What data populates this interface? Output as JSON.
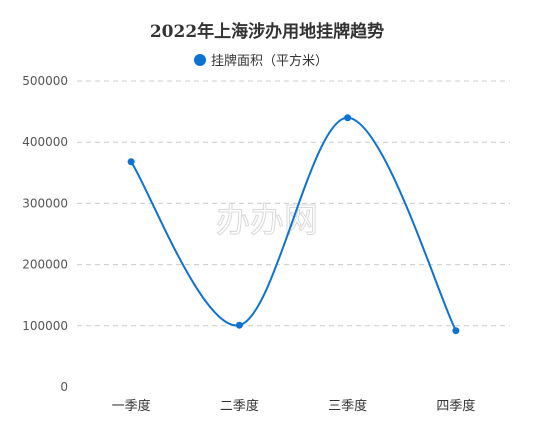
{
  "chart_data": {
    "type": "line",
    "title": "2022年上海涉办用地挂牌趋势",
    "categories": [
      "一季度",
      "二季度",
      "三季度",
      "四季度"
    ],
    "series": [
      {
        "name": "挂牌面积（平方米）",
        "values": [
          368000,
          101000,
          440000,
          92000
        ]
      }
    ],
    "ylim": [
      0,
      500000
    ],
    "yticks": [
      0,
      100000,
      200000,
      300000,
      400000,
      500000
    ],
    "grid": true,
    "smooth": true,
    "legend_position": "top-center",
    "colors": {
      "series": "#0e72d2",
      "grid": "#cccccc"
    }
  },
  "watermark": "办办网"
}
